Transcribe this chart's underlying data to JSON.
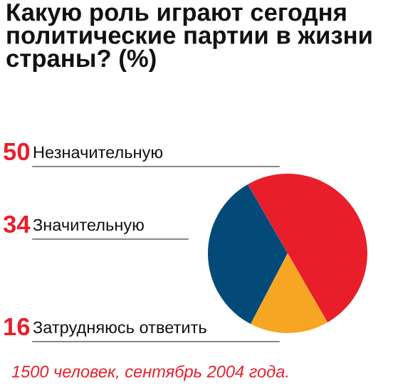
{
  "chart_data": {
    "type": "pie",
    "title": "Какую роль играют сегодня\nполитические партии в жизни\nстраны? (%)",
    "categories": [
      "Незначительную",
      "Значительную",
      "Затрудняюсь ответить"
    ],
    "values": [
      50,
      34,
      16
    ],
    "colors": [
      "#e81f2b",
      "#044a78",
      "#f6a623"
    ],
    "data_labels": true,
    "annotations": [
      "1500 человек, сентябрь 2004 года."
    ]
  }
}
